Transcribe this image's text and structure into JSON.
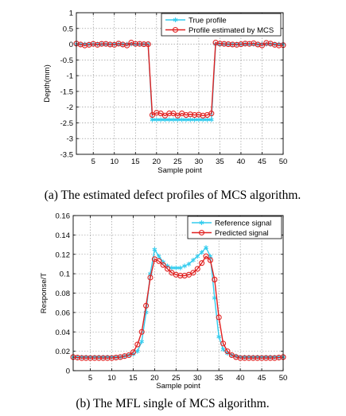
{
  "chart_data": [
    {
      "type": "line",
      "caption": "(a) The estimated defect profiles of MCS algorithm.",
      "xlabel": "Sample point",
      "ylabel": "Depth(mm)",
      "xlim": [
        1,
        50
      ],
      "ylim": [
        -3.5,
        1
      ],
      "xticks": [
        5,
        10,
        15,
        20,
        25,
        30,
        35,
        40,
        45,
        50
      ],
      "yticks": [
        -3.5,
        -3,
        -2.5,
        -2,
        -1.5,
        -1,
        -0.5,
        0,
        0.5,
        1
      ],
      "ytick_labels": [
        "-3.5",
        "-3",
        "-2.5",
        "-2",
        "-1.5",
        "-1",
        "-0.5",
        "0",
        "0.5",
        "1"
      ],
      "grid": true,
      "legend_position": "top-right",
      "x": [
        1,
        2,
        3,
        4,
        5,
        6,
        7,
        8,
        9,
        10,
        11,
        12,
        13,
        14,
        15,
        16,
        17,
        18,
        19,
        20,
        21,
        22,
        23,
        24,
        25,
        26,
        27,
        28,
        29,
        30,
        31,
        32,
        33,
        34,
        35,
        36,
        37,
        38,
        39,
        40,
        41,
        42,
        43,
        44,
        45,
        46,
        47,
        48,
        49,
        50
      ],
      "series": [
        {
          "name": "True profile",
          "color": "#33CCEE",
          "marker": "star",
          "values": [
            0,
            0,
            0,
            0,
            0,
            0,
            0,
            0,
            0,
            0,
            0,
            0,
            0,
            0,
            0,
            0,
            0,
            0,
            -2.4,
            -2.4,
            -2.4,
            -2.4,
            -2.4,
            -2.4,
            -2.4,
            -2.4,
            -2.4,
            -2.4,
            -2.4,
            -2.4,
            -2.4,
            -2.4,
            -2.4,
            0,
            0,
            0,
            0,
            0,
            0,
            0,
            0,
            0,
            0,
            0,
            0,
            0,
            0,
            0,
            0,
            0
          ]
        },
        {
          "name": "Profile estimated by MCS",
          "color": "#E02020",
          "marker": "circle",
          "values": [
            0.02,
            -0.01,
            -0.04,
            -0.02,
            0.01,
            -0.02,
            0.01,
            0.01,
            -0.01,
            -0.02,
            0.02,
            -0.01,
            -0.04,
            0.05,
            0.01,
            0.01,
            0.0,
            0.0,
            -2.25,
            -2.18,
            -2.2,
            -2.27,
            -2.2,
            -2.2,
            -2.27,
            -2.2,
            -2.25,
            -2.23,
            -2.25,
            -2.24,
            -2.27,
            -2.25,
            -2.2,
            0.05,
            0.02,
            0.01,
            0.0,
            -0.01,
            -0.02,
            0.0,
            0.02,
            0.01,
            0.03,
            -0.01,
            -0.04,
            0.04,
            0.02,
            -0.02,
            -0.04,
            -0.03
          ]
        }
      ]
    },
    {
      "type": "line",
      "caption": "(b) The MFL single of MCS algorithm.",
      "xlabel": "Sample point",
      "ylabel": "Response/T",
      "xlim": [
        1,
        50
      ],
      "ylim": [
        0,
        0.16
      ],
      "xticks": [
        5,
        10,
        15,
        20,
        25,
        30,
        35,
        40,
        45,
        50
      ],
      "yticks": [
        0,
        0.02,
        0.04,
        0.06,
        0.08,
        0.1,
        0.12,
        0.14,
        0.16
      ],
      "ytick_labels": [
        "0",
        "0.02",
        "0.04",
        "0.06",
        "0.08",
        "0.1",
        "0.12",
        "0.14",
        "0.16"
      ],
      "grid": true,
      "legend_position": "top-right",
      "x": [
        1,
        2,
        3,
        4,
        5,
        6,
        7,
        8,
        9,
        10,
        11,
        12,
        13,
        14,
        15,
        16,
        17,
        18,
        19,
        20,
        21,
        22,
        23,
        24,
        25,
        26,
        27,
        28,
        29,
        30,
        31,
        32,
        33,
        34,
        35,
        36,
        37,
        38,
        39,
        40,
        41,
        42,
        43,
        44,
        45,
        46,
        47,
        48,
        49,
        50
      ],
      "series": [
        {
          "name": "Reference signal",
          "color": "#33CCEE",
          "marker": "star",
          "values": [
            0.014,
            0.014,
            0.014,
            0.014,
            0.014,
            0.014,
            0.014,
            0.014,
            0.014,
            0.014,
            0.014,
            0.014,
            0.015,
            0.016,
            0.017,
            0.02,
            0.03,
            0.06,
            0.1,
            0.125,
            0.118,
            0.112,
            0.108,
            0.106,
            0.106,
            0.106,
            0.108,
            0.11,
            0.114,
            0.118,
            0.122,
            0.127,
            0.118,
            0.075,
            0.035,
            0.022,
            0.018,
            0.016,
            0.015,
            0.014,
            0.014,
            0.014,
            0.014,
            0.014,
            0.014,
            0.014,
            0.014,
            0.014,
            0.014,
            0.014
          ]
        },
        {
          "name": "Predicted signal",
          "color": "#E02020",
          "marker": "circle",
          "values": [
            0.014,
            0.0135,
            0.013,
            0.013,
            0.013,
            0.013,
            0.013,
            0.013,
            0.013,
            0.013,
            0.0135,
            0.014,
            0.015,
            0.016,
            0.019,
            0.027,
            0.04,
            0.067,
            0.096,
            0.115,
            0.113,
            0.109,
            0.105,
            0.101,
            0.099,
            0.098,
            0.098,
            0.099,
            0.101,
            0.105,
            0.111,
            0.118,
            0.114,
            0.094,
            0.055,
            0.028,
            0.02,
            0.016,
            0.014,
            0.013,
            0.013,
            0.013,
            0.013,
            0.013,
            0.013,
            0.013,
            0.013,
            0.013,
            0.0135,
            0.014
          ]
        }
      ]
    }
  ]
}
